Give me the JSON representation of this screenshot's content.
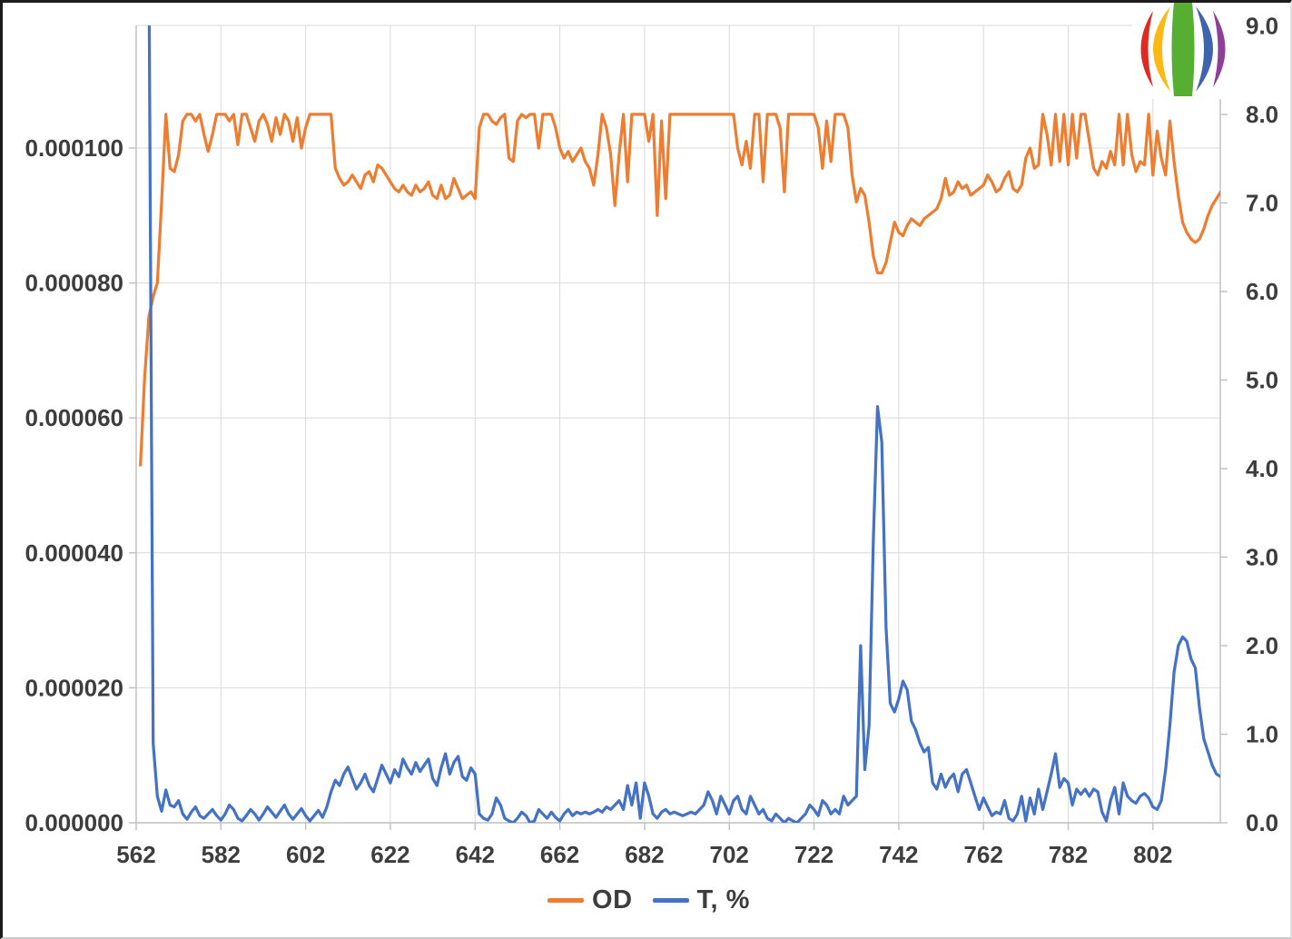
{
  "page": {
    "background": "#ffffff"
  },
  "logo": {
    "description": "striped-sphere-logo",
    "colors": [
      "#dd2a22",
      "#fdb913",
      "#56af31",
      "#3f64ae",
      "#8f3f97"
    ]
  },
  "legend": {
    "items": [
      {
        "label": "OD",
        "color": "#ED7D31"
      },
      {
        "label": "T, %",
        "color": "#4472C4"
      }
    ],
    "position": "bottom-center"
  },
  "style": {
    "grid_color": "#d9d9d9",
    "axis_color": "#bfbfbf",
    "label_color": "#3d3d3d",
    "od_color": "#ED7D31",
    "t_color": "#4472C4"
  },
  "chart_data": {
    "type": "line",
    "title": "",
    "grid": true,
    "legend_position": "bottom",
    "x_axis": {
      "min": 562,
      "max": 818,
      "ticks": [
        562,
        582,
        602,
        622,
        642,
        662,
        682,
        702,
        722,
        742,
        762,
        782,
        802
      ]
    },
    "y_axis_left": {
      "min": 0,
      "max": 0.000118,
      "tick_values": [
        0,
        2e-05,
        4e-05,
        6e-05,
        8e-05,
        0.0001
      ],
      "tick_labels": [
        "0.000000",
        "0.000020",
        "0.000040",
        "0.000060",
        "0.000080",
        "0.000100"
      ]
    },
    "y_axis_right": {
      "min": 0,
      "max": 9,
      "tick_values": [
        0,
        1,
        2,
        3,
        4,
        5,
        6,
        7,
        8,
        9
      ],
      "tick_labels": [
        "0.0",
        "1.0",
        "2.0",
        "3.0",
        "4.0",
        "5.0",
        "6.0",
        "7.0",
        "8.0",
        "9.0"
      ]
    },
    "x": {
      "start": 562,
      "step": 1,
      "count": 257
    },
    "series": [
      {
        "name": "OD",
        "color": "#ED7D31",
        "axis": "left",
        "value_scale": 1e-06,
        "values": [
          null,
          53,
          66,
          75,
          78,
          80,
          92,
          105,
          97,
          96.5,
          99,
          104,
          105,
          105,
          104,
          105,
          102,
          99.5,
          102,
          105,
          105,
          105,
          104,
          105,
          100.5,
          105,
          105,
          103,
          101,
          104,
          105,
          103.5,
          101,
          104.5,
          102,
          105,
          104,
          101,
          104.5,
          100,
          103,
          105,
          105,
          105,
          105,
          105,
          105,
          97,
          95.5,
          94.5,
          95,
          96,
          95,
          94,
          96,
          96.5,
          95,
          97.5,
          97,
          96,
          95,
          94,
          93.5,
          94.5,
          93.5,
          93,
          94.5,
          93.5,
          94,
          95,
          93,
          92.5,
          94.5,
          92.5,
          93,
          95.5,
          94,
          92.5,
          93,
          93.5,
          92.5,
          103,
          105,
          105,
          104,
          103.5,
          104.5,
          105,
          98.5,
          98,
          104,
          105,
          104.5,
          105,
          105,
          100,
          105,
          105,
          105,
          103,
          100,
          98.5,
          99.5,
          98,
          99,
          100,
          98,
          97,
          94.5,
          99,
          105,
          103,
          99,
          91.5,
          99,
          105,
          95,
          105,
          105,
          105,
          105,
          101,
          105,
          90,
          104,
          92.5,
          105,
          105,
          105,
          105,
          105,
          105,
          105,
          105,
          105,
          105,
          105,
          105,
          105,
          105,
          105,
          105,
          100,
          97.5,
          101,
          97,
          105,
          105,
          95,
          105,
          105,
          105,
          103,
          93.5,
          105,
          105,
          105,
          105,
          105,
          105,
          105,
          103,
          97,
          104,
          98,
          105,
          105,
          105,
          103,
          96,
          92,
          94,
          93,
          89,
          84,
          81.5,
          81.5,
          83,
          86,
          89,
          87.5,
          87,
          88.5,
          89.5,
          89,
          88.5,
          89.5,
          90,
          90.5,
          91,
          92.5,
          95.5,
          93,
          93.5,
          95,
          94,
          94.5,
          93,
          93.5,
          94,
          94.5,
          96,
          95,
          93.5,
          94,
          95.5,
          96.5,
          94,
          93.5,
          94.5,
          98.5,
          100,
          97,
          97.5,
          105,
          102,
          97.5,
          105,
          98,
          105,
          97.5,
          105,
          98.5,
          105,
          105,
          101,
          97,
          96,
          98,
          97,
          99.5,
          97.5,
          105,
          97.5,
          105,
          99,
          96.5,
          98,
          97.5,
          105,
          96,
          102.5,
          98.5,
          96,
          104,
          98,
          93,
          89,
          87.5,
          86.5,
          86,
          86.5,
          88,
          90,
          91.5,
          92.5,
          93.5
        ]
      },
      {
        "name": "T, %",
        "color": "#4472C4",
        "axis": "right",
        "value_scale": 1,
        "values": [
          60,
          40,
          20,
          9.8,
          0.9,
          0.3,
          0.13,
          0.37,
          0.2,
          0.18,
          0.25,
          0.1,
          0.04,
          0.12,
          0.18,
          0.08,
          0.05,
          0.1,
          0.15,
          0.08,
          0.03,
          0.1,
          0.2,
          0.15,
          0.05,
          0.02,
          0.08,
          0.15,
          0.1,
          0.03,
          0.1,
          0.18,
          0.12,
          0.06,
          0.13,
          0.2,
          0.1,
          0.04,
          0.1,
          0.16,
          0.08,
          0.02,
          0.08,
          0.14,
          0.06,
          0.18,
          0.35,
          0.48,
          0.42,
          0.55,
          0.63,
          0.5,
          0.38,
          0.45,
          0.55,
          0.42,
          0.35,
          0.5,
          0.65,
          0.55,
          0.45,
          0.6,
          0.52,
          0.72,
          0.62,
          0.55,
          0.68,
          0.58,
          0.65,
          0.72,
          0.5,
          0.42,
          0.62,
          0.78,
          0.55,
          0.68,
          0.75,
          0.52,
          0.48,
          0.62,
          0.55,
          0.1,
          0.05,
          0.03,
          0.1,
          0.28,
          0.2,
          0.05,
          0.02,
          0,
          0.05,
          0.12,
          0.08,
          0,
          0.02,
          0.15,
          0.1,
          0.05,
          0.12,
          0.06,
          0.02,
          0.1,
          0.15,
          0.08,
          0.12,
          0.1,
          0.12,
          0.1,
          0.12,
          0.15,
          0.12,
          0.18,
          0.15,
          0.2,
          0.25,
          0.15,
          0.42,
          0.2,
          0.45,
          0.05,
          0.45,
          0.3,
          0.1,
          0.05,
          0.12,
          0.15,
          0.1,
          0.12,
          0.1,
          0.08,
          0.1,
          0.12,
          0.1,
          0.15,
          0.2,
          0.35,
          0.25,
          0.1,
          0.3,
          0.2,
          0.1,
          0.25,
          0.3,
          0.15,
          0.1,
          0.3,
          0.2,
          0.1,
          0.15,
          0.05,
          0.02,
          0.1,
          0.05,
          0,
          0.05,
          0.02,
          0,
          0.05,
          0.1,
          0.2,
          0.15,
          0.08,
          0.25,
          0.2,
          0.1,
          0.15,
          0.1,
          0.3,
          0.2,
          0.25,
          0.3,
          2,
          0.6,
          1.1,
          3.2,
          4.7,
          4.3,
          2.2,
          1.35,
          1.25,
          1.4,
          1.6,
          1.5,
          1.15,
          1.05,
          0.9,
          0.8,
          0.85,
          0.45,
          0.38,
          0.55,
          0.4,
          0.5,
          0.55,
          0.35,
          0.55,
          0.6,
          0.45,
          0.3,
          0.15,
          0.28,
          0.18,
          0.08,
          0.12,
          0.1,
          0.25,
          0.05,
          0.02,
          0.1,
          0.3,
          0.02,
          0.28,
          0.1,
          0.38,
          0.15,
          0.35,
          0.55,
          0.78,
          0.4,
          0.5,
          0.45,
          0.2,
          0.38,
          0.32,
          0.38,
          0.3,
          0.38,
          0.35,
          0.12,
          0.02,
          0.25,
          0.4,
          0.1,
          0.45,
          0.3,
          0.25,
          0.22,
          0.3,
          0.33,
          0.28,
          0.18,
          0.15,
          0.25,
          0.6,
          1.1,
          1.7,
          2,
          2.1,
          2.05,
          1.85,
          1.75,
          1.3,
          0.95,
          0.8,
          0.65,
          0.55,
          0.52
        ]
      }
    ]
  }
}
